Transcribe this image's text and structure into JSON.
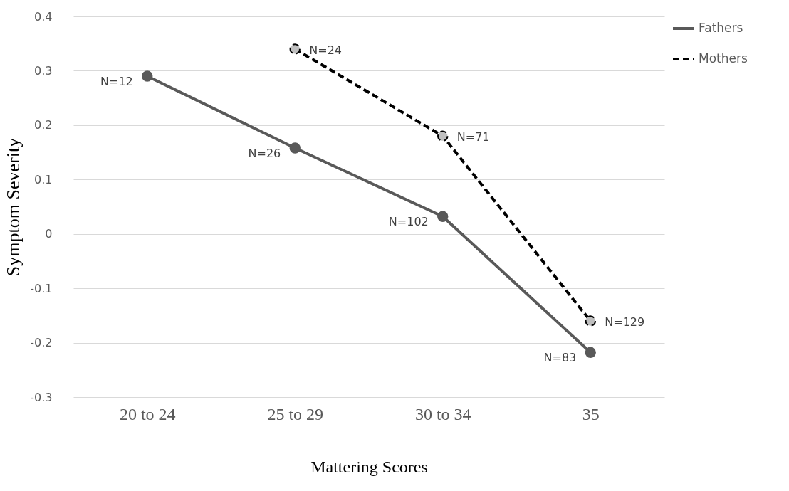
{
  "chart_data": {
    "type": "line",
    "xlabel": "Mattering Scores",
    "ylabel": "Symptom Severity",
    "categories": [
      "20 to 24",
      "25 to 29",
      "30 to 34",
      "35"
    ],
    "series": [
      {
        "name": "Fathers",
        "color": "#595959",
        "line_style": "solid",
        "values": [
          0.29,
          0.158,
          0.032,
          -0.218
        ]
      },
      {
        "name": "Mothers",
        "color": "#000000",
        "line_style": "dashed",
        "values": [
          null,
          0.34,
          0.18,
          -0.16
        ]
      }
    ],
    "ylim": [
      -0.3,
      0.4
    ],
    "yticks": [
      -0.3,
      -0.2,
      -0.1,
      0,
      0.1,
      0.2,
      0.3,
      0.4
    ],
    "grid": "y",
    "legend": "right",
    "marker": "circle",
    "annotations": [
      {
        "text": "N=12",
        "x": "20 to 24",
        "y": 0.29
      },
      {
        "text": "N=26",
        "x": "25 to 29",
        "y": 0.158
      },
      {
        "text": "N=102",
        "x": "30 to 34",
        "y": 0.032
      },
      {
        "text": "N=83",
        "x": "35",
        "y": -0.218
      },
      {
        "text": "N=24",
        "x": "25 to 29",
        "y": 0.34
      },
      {
        "text": "N=71",
        "x": "30 to 34",
        "y": 0.18
      },
      {
        "text": "N=129",
        "x": "35",
        "y": -0.16
      }
    ]
  }
}
